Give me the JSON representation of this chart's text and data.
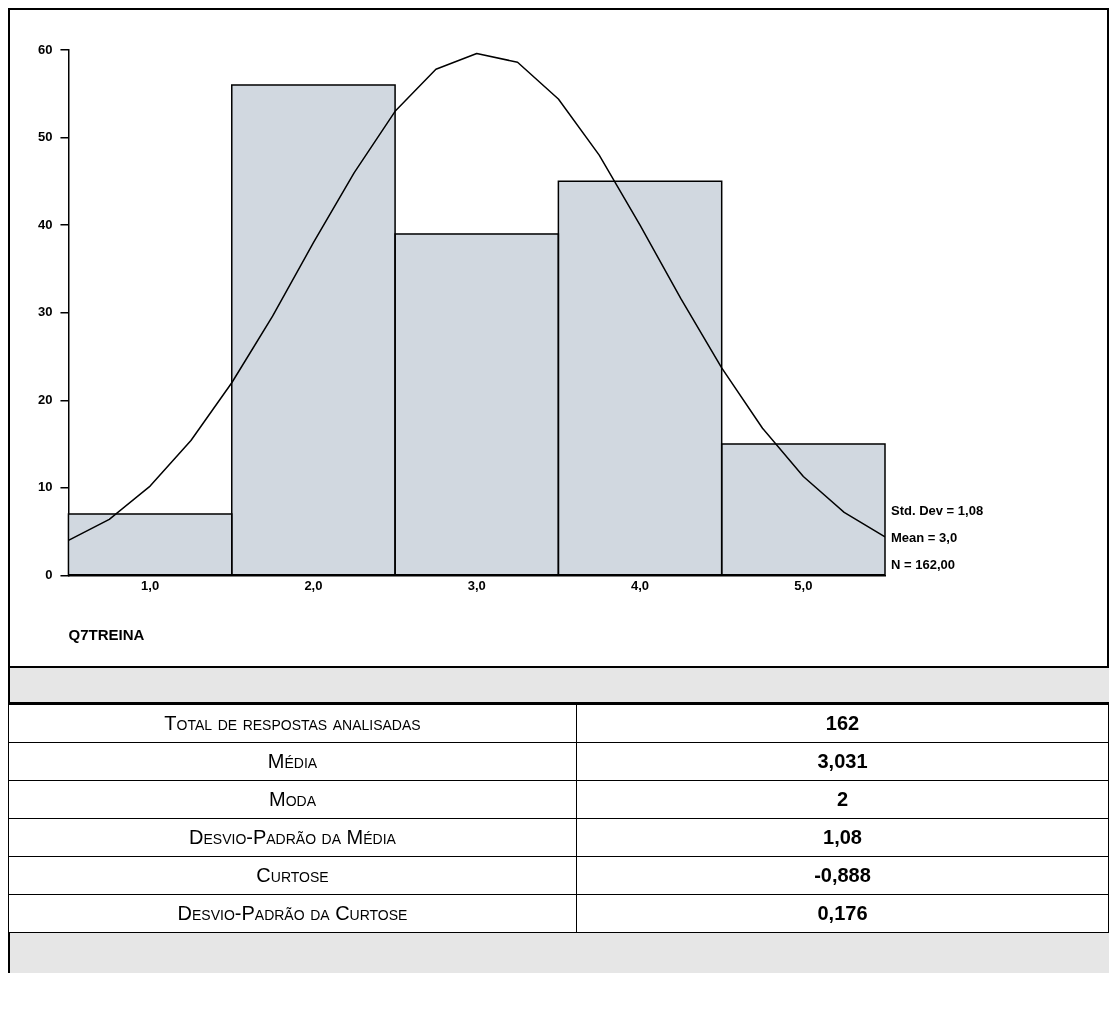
{
  "chart_data": [
    {
      "type": "histogram",
      "xlabel": "Q7TREINA",
      "bins": [
        0.5,
        1.5,
        2.5,
        3.5,
        4.5,
        5.5
      ],
      "values": [
        7,
        56,
        39,
        45,
        15
      ],
      "color": "#d1d8e0",
      "series": [
        {
          "type": "line",
          "color": "#000000",
          "x": [
            0.5,
            0.75,
            1.0,
            1.25,
            1.5,
            1.75,
            2.0,
            2.25,
            2.5,
            2.75,
            3.0,
            3.25,
            3.5,
            3.75,
            4.0,
            4.25,
            4.5,
            4.75,
            5.0,
            5.25,
            5.5
          ],
          "values": [
            4,
            6.4,
            10.2,
            15.4,
            22,
            29.6,
            38,
            46,
            53,
            57.8,
            59.6,
            58.6,
            54.4,
            48,
            40,
            31.6,
            23.7,
            16.8,
            11.3,
            7.2,
            4.4
          ]
        }
      ],
      "xlim": [
        0.5,
        5.5
      ],
      "xticks": [
        {
          "value": 1,
          "label": "1,0"
        },
        {
          "value": 2,
          "label": "2,0"
        },
        {
          "value": 3,
          "label": "3,0"
        },
        {
          "value": 4,
          "label": "4,0"
        },
        {
          "value": 5,
          "label": "5,0"
        }
      ],
      "ylim": [
        0,
        60
      ],
      "yticks": [
        0,
        10,
        20,
        30,
        40,
        50,
        60
      ],
      "grid": false,
      "legend": false,
      "annotations": [
        "Std. Dev = 1,08",
        "Mean = 3,0",
        "N = 162,00"
      ]
    },
    {
      "type": "other",
      "categories": [
        "Total de respostas analisadas",
        "Média",
        "Moda",
        "Desvio-Padrão da Média",
        "Curtose",
        "Desvio-Padrão da Curtose"
      ],
      "value_labels": [
        "162",
        "3,031",
        "2",
        "1,08",
        "-0,888",
        "0,176"
      ]
    }
  ]
}
